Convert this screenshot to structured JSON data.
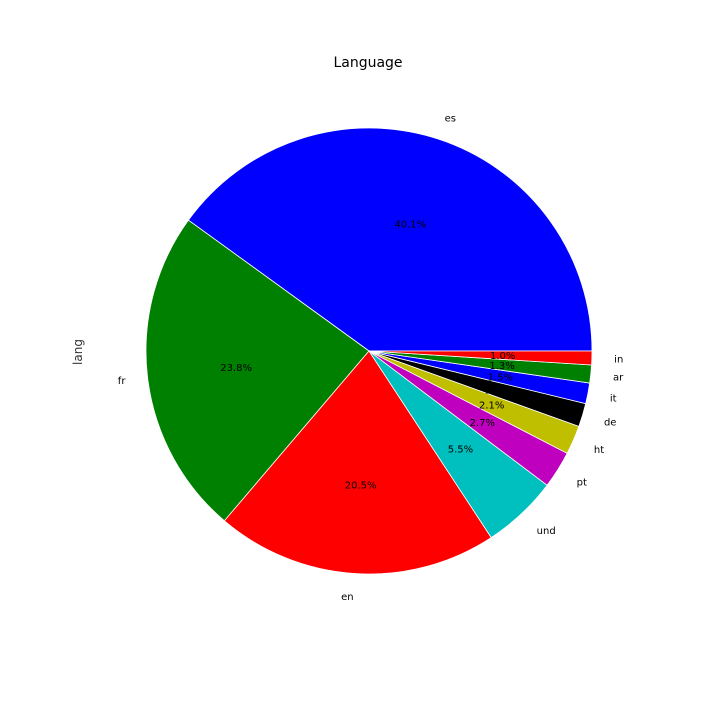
{
  "chart_data": {
    "type": "pie",
    "title": "Language",
    "ylabel": "lang",
    "start_angle": 0,
    "direction": "counterclockwise",
    "edge_color": "#ffffff",
    "slices": [
      {
        "label": "es",
        "value": 40.1,
        "pct_text": "40.1%",
        "color": "#0000ff"
      },
      {
        "label": "fr",
        "value": 23.8,
        "pct_text": "23.8%",
        "color": "#008000"
      },
      {
        "label": "en",
        "value": 20.5,
        "pct_text": "20.5%",
        "color": "#ff0000"
      },
      {
        "label": "und",
        "value": 5.5,
        "pct_text": "5.5%",
        "color": "#00bfbf"
      },
      {
        "label": "pt",
        "value": 2.7,
        "pct_text": "2.7%",
        "color": "#bf00bf"
      },
      {
        "label": "ht",
        "value": 2.1,
        "pct_text": "2.1%",
        "color": "#bfbf00"
      },
      {
        "label": "de",
        "value": 1.7,
        "pct_text": "1.7%",
        "color": "#000000"
      },
      {
        "label": "it",
        "value": 1.5,
        "pct_text": "1.5%",
        "color": "#0000ff"
      },
      {
        "label": "ar",
        "value": 1.3,
        "pct_text": "1.3%",
        "color": "#008000"
      },
      {
        "label": "in",
        "value": 1.0,
        "pct_text": "1.0%",
        "color": "#ff0000"
      }
    ]
  }
}
